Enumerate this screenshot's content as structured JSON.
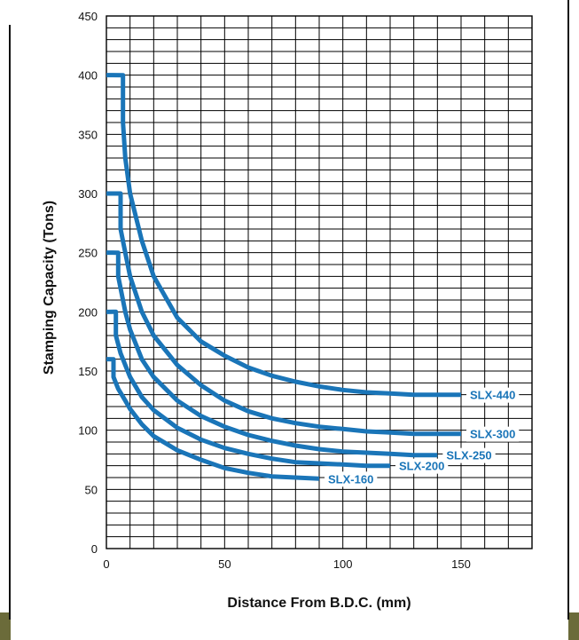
{
  "chart_data": {
    "type": "line",
    "xlabel": "Distance From B.D.C. (mm)",
    "ylabel": "Stamping Capacity (Tons)",
    "xlim": [
      0,
      180
    ],
    "ylim": [
      0,
      450
    ],
    "x_ticks": [
      0,
      50,
      100,
      150
    ],
    "y_ticks": [
      0,
      50,
      100,
      150,
      200,
      250,
      300,
      350,
      400,
      450
    ],
    "grid": true,
    "line_color": "#1a75b8",
    "series": [
      {
        "name": "SLX-440",
        "points": [
          [
            0,
            400
          ],
          [
            7,
            400
          ],
          [
            7,
            360
          ],
          [
            8,
            330
          ],
          [
            10,
            300
          ],
          [
            15,
            260
          ],
          [
            20,
            230
          ],
          [
            30,
            195
          ],
          [
            40,
            175
          ],
          [
            50,
            163
          ],
          [
            60,
            153
          ],
          [
            70,
            146
          ],
          [
            80,
            141
          ],
          [
            90,
            137
          ],
          [
            100,
            134
          ],
          [
            110,
            132
          ],
          [
            120,
            131
          ],
          [
            130,
            130
          ],
          [
            140,
            130
          ],
          [
            150,
            130
          ]
        ]
      },
      {
        "name": "SLX-300",
        "points": [
          [
            0,
            300
          ],
          [
            6,
            300
          ],
          [
            6,
            270
          ],
          [
            8,
            250
          ],
          [
            10,
            230
          ],
          [
            15,
            200
          ],
          [
            20,
            180
          ],
          [
            30,
            155
          ],
          [
            40,
            138
          ],
          [
            50,
            125
          ],
          [
            60,
            116
          ],
          [
            70,
            110
          ],
          [
            80,
            106
          ],
          [
            90,
            103
          ],
          [
            100,
            101
          ],
          [
            110,
            99
          ],
          [
            120,
            98
          ],
          [
            130,
            97
          ],
          [
            140,
            97
          ],
          [
            150,
            97
          ]
        ]
      },
      {
        "name": "SLX-250",
        "points": [
          [
            0,
            250
          ],
          [
            5,
            250
          ],
          [
            5,
            230
          ],
          [
            8,
            200
          ],
          [
            10,
            185
          ],
          [
            15,
            160
          ],
          [
            20,
            145
          ],
          [
            30,
            125
          ],
          [
            40,
            112
          ],
          [
            50,
            103
          ],
          [
            60,
            96
          ],
          [
            70,
            91
          ],
          [
            80,
            87
          ],
          [
            90,
            84
          ],
          [
            100,
            82
          ],
          [
            110,
            81
          ],
          [
            120,
            80
          ],
          [
            130,
            79
          ],
          [
            140,
            79
          ]
        ]
      },
      {
        "name": "SLX-200",
        "points": [
          [
            0,
            200
          ],
          [
            4,
            200
          ],
          [
            4,
            180
          ],
          [
            6,
            165
          ],
          [
            8,
            155
          ],
          [
            10,
            145
          ],
          [
            15,
            128
          ],
          [
            20,
            117
          ],
          [
            30,
            102
          ],
          [
            40,
            92
          ],
          [
            50,
            85
          ],
          [
            60,
            80
          ],
          [
            70,
            76
          ],
          [
            80,
            73
          ],
          [
            90,
            72
          ],
          [
            100,
            71
          ],
          [
            110,
            70
          ],
          [
            120,
            70
          ]
        ]
      },
      {
        "name": "SLX-160",
        "points": [
          [
            0,
            160
          ],
          [
            3,
            160
          ],
          [
            3,
            145
          ],
          [
            5,
            135
          ],
          [
            8,
            125
          ],
          [
            10,
            118
          ],
          [
            15,
            105
          ],
          [
            20,
            95
          ],
          [
            30,
            83
          ],
          [
            40,
            75
          ],
          [
            50,
            68
          ],
          [
            60,
            64
          ],
          [
            70,
            61
          ],
          [
            80,
            60
          ],
          [
            90,
            59
          ]
        ]
      }
    ]
  }
}
